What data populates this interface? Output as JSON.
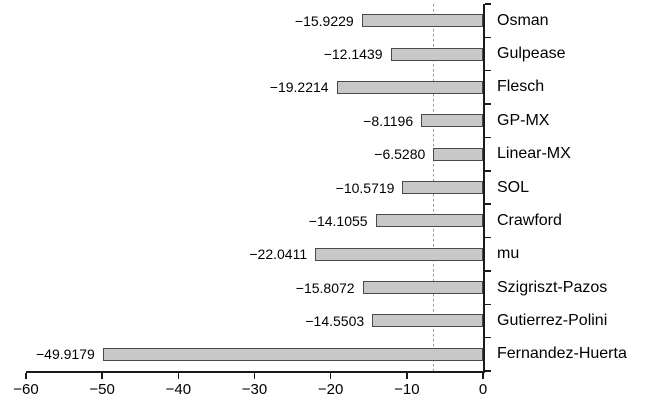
{
  "chart_data": {
    "type": "bar",
    "orientation": "horizontal",
    "title": "",
    "xlabel": "",
    "ylabel": "",
    "grid": false,
    "categories": [
      "Osman",
      "Gulpease",
      "Flesch",
      "GP-MX",
      "Linear-MX",
      "SOL",
      "Crawford",
      "mu",
      "Szigriszt-Pazos",
      "Gutierrez-Polini",
      "Fernandez-Huerta"
    ],
    "values": [
      -15.9229,
      -12.1439,
      -19.2214,
      -8.1196,
      -6.528,
      -10.5719,
      -14.1055,
      -22.0411,
      -15.8072,
      -14.5503,
      -49.9179
    ],
    "value_labels": [
      "−15.9229",
      "−12.1439",
      "−19.2214",
      "−8.1196",
      "−6.5280",
      "−10.5719",
      "−14.1055",
      "−22.0411",
      "−15.8072",
      "−14.5503",
      "−49.9179"
    ],
    "xlim": [
      -60,
      0
    ],
    "x_ticks": [
      -60,
      -50,
      -40,
      -30,
      -20,
      -10,
      0
    ],
    "x_tick_labels": [
      "−60",
      "−50",
      "−40",
      "−30",
      "−20",
      "−10",
      "0"
    ],
    "reference_line": {
      "value": -6.528,
      "style": "dashed"
    },
    "colors": {
      "bar_fill": "#c8c8c8",
      "bar_border": "#4a4a4a",
      "axis": "#1a1a1a",
      "text": "#000000",
      "reference_line": "#7d9ad2"
    }
  }
}
